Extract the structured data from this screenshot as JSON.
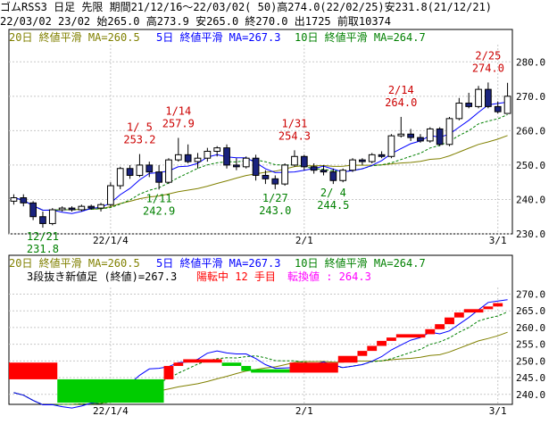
{
  "header": {
    "line1": "ゴムRSS3 日足 先限 期間21/12/16～22/03/02( 50)高274.0(22/02/25)安231.8(21/12/21)",
    "line2": "22/03/02 23/02 始265.0 高273.9 安265.0 終270.0 出1725 前取10374"
  },
  "colors": {
    "ma20": "#808000",
    "ma5": "#0000ff",
    "ma10": "#008000",
    "up": "#ff0000",
    "down": "#00cc00",
    "candle_body": "#ffffff",
    "candle_fill_dark": "#1a237e",
    "annotation_high": "#cc0000",
    "annotation_low": "#008000",
    "grid": "#c8c8c8"
  },
  "chart_data": [
    {
      "type": "candlestick",
      "legend": [
        {
          "label": "20日 終値平滑 MA=260.5",
          "color": "#808000"
        },
        {
          "label": "5日 終値平滑 MA=267.3",
          "color": "#0000ff"
        },
        {
          "label": "10日 終値平滑 MA=264.7",
          "color": "#008000"
        }
      ],
      "ylim": [
        230,
        285
      ],
      "yticks": [
        230,
        240,
        250,
        260,
        270,
        280
      ],
      "xticks": [
        {
          "label": "22/1/4",
          "index": 10
        },
        {
          "label": "2/1",
          "index": 30
        },
        {
          "label": "3/1",
          "index": 50
        }
      ],
      "candles": [
        [
          239.5,
          241.5,
          238.5,
          240.5
        ],
        [
          240.5,
          241.5,
          238.0,
          239.0
        ],
        [
          239.0,
          239.5,
          234.0,
          235.0
        ],
        [
          235.0,
          236.5,
          231.8,
          233.0
        ],
        [
          233.0,
          237.5,
          232.5,
          237.0
        ],
        [
          237.0,
          238.0,
          236.5,
          237.5
        ],
        [
          237.5,
          238.0,
          236.5,
          237.0
        ],
        [
          237.0,
          238.5,
          236.5,
          238.0
        ],
        [
          238.0,
          238.5,
          237.0,
          237.5
        ],
        [
          237.5,
          239.0,
          236.5,
          238.5
        ],
        [
          238.5,
          245.0,
          238.0,
          244.0
        ],
        [
          244.0,
          249.5,
          243.0,
          249.0
        ],
        [
          249.0,
          250.0,
          246.0,
          247.0
        ],
        [
          247.0,
          253.2,
          246.5,
          250.0
        ],
        [
          250.0,
          251.0,
          246.5,
          248.0
        ],
        [
          248.0,
          250.0,
          242.9,
          245.0
        ],
        [
          245.0,
          252.0,
          244.5,
          251.5
        ],
        [
          251.5,
          257.9,
          251.0,
          253.0
        ],
        [
          253.0,
          256.0,
          250.5,
          251.0
        ],
        [
          251.0,
          253.5,
          249.0,
          252.0
        ],
        [
          252.0,
          255.0,
          251.0,
          254.0
        ],
        [
          254.0,
          255.5,
          252.5,
          255.0
        ],
        [
          255.0,
          256.0,
          249.0,
          250.0
        ],
        [
          250.0,
          252.0,
          248.5,
          249.5
        ],
        [
          249.5,
          252.5,
          249.0,
          252.0
        ],
        [
          252.0,
          253.0,
          245.5,
          247.0
        ],
        [
          247.0,
          248.5,
          244.5,
          246.0
        ],
        [
          246.0,
          247.0,
          243.0,
          244.5
        ],
        [
          244.5,
          250.5,
          244.0,
          250.0
        ],
        [
          250.0,
          254.3,
          249.5,
          252.5
        ],
        [
          252.5,
          253.0,
          248.5,
          249.5
        ],
        [
          249.5,
          250.5,
          247.5,
          248.5
        ],
        [
          248.5,
          250.0,
          247.0,
          248.0
        ],
        [
          248.0,
          249.0,
          244.5,
          245.5
        ],
        [
          245.5,
          249.0,
          245.0,
          248.5
        ],
        [
          248.5,
          252.0,
          248.0,
          251.5
        ],
        [
          251.5,
          252.0,
          250.0,
          251.0
        ],
        [
          251.0,
          253.5,
          250.5,
          253.0
        ],
        [
          253.0,
          254.0,
          252.0,
          252.5
        ],
        [
          252.5,
          259.0,
          252.0,
          258.5
        ],
        [
          258.5,
          264.0,
          258.0,
          259.0
        ],
        [
          259.0,
          260.5,
          257.0,
          258.0
        ],
        [
          258.0,
          259.0,
          256.5,
          257.0
        ],
        [
          257.0,
          261.0,
          256.5,
          260.5
        ],
        [
          260.5,
          261.0,
          255.5,
          256.0
        ],
        [
          256.0,
          264.0,
          255.5,
          263.5
        ],
        [
          263.5,
          269.5,
          263.0,
          268.0
        ],
        [
          268.0,
          271.0,
          266.5,
          267.0
        ],
        [
          267.0,
          273.0,
          266.5,
          272.0
        ],
        [
          272.0,
          274.0,
          266.5,
          267.0
        ],
        [
          267.0,
          268.5,
          265.0,
          265.5
        ],
        [
          265.0,
          273.9,
          265.0,
          270.0
        ]
      ],
      "annotations": [
        {
          "text": "12/21",
          "value": 231.8,
          "index": 3,
          "kind": "low"
        },
        {
          "text": "231.8",
          "value": 231.8,
          "index": 3,
          "kind": "low"
        },
        {
          "text": "1/ 5",
          "value": 253.2,
          "index": 13,
          "kind": "high"
        },
        {
          "text": "253.2",
          "value": 253.2,
          "index": 13,
          "kind": "high"
        },
        {
          "text": "1/11",
          "value": 242.9,
          "index": 15,
          "kind": "low"
        },
        {
          "text": "242.9",
          "value": 242.9,
          "index": 15,
          "kind": "low"
        },
        {
          "text": "1/14",
          "value": 257.9,
          "index": 17,
          "kind": "high"
        },
        {
          "text": "257.9",
          "value": 257.9,
          "index": 17,
          "kind": "high"
        },
        {
          "text": "1/27",
          "value": 243.0,
          "index": 27,
          "kind": "low"
        },
        {
          "text": "243.0",
          "value": 243.0,
          "index": 27,
          "kind": "low"
        },
        {
          "text": "1/31",
          "value": 254.3,
          "index": 29,
          "kind": "high"
        },
        {
          "text": "254.3",
          "value": 254.3,
          "index": 29,
          "kind": "high"
        },
        {
          "text": "2/ 4",
          "value": 244.5,
          "index": 33,
          "kind": "low"
        },
        {
          "text": "244.5",
          "value": 244.5,
          "index": 33,
          "kind": "low"
        },
        {
          "text": "2/14",
          "value": 264.0,
          "index": 40,
          "kind": "high"
        },
        {
          "text": "264.0",
          "value": 264.0,
          "index": 40,
          "kind": "high"
        },
        {
          "text": "2/25",
          "value": 274.0,
          "index": 49,
          "kind": "high"
        },
        {
          "text": "274.0",
          "value": 274.0,
          "index": 49,
          "kind": "high"
        }
      ]
    },
    {
      "type": "three-line-break",
      "legend": [
        {
          "label": "20日 終値平滑 MA=260.5",
          "color": "#808000"
        },
        {
          "label": "5日 終値平滑 MA=267.3",
          "color": "#0000ff"
        },
        {
          "label": "10日 終値平滑 MA=264.7",
          "color": "#008000"
        }
      ],
      "info": [
        {
          "text": "3段抜き新値足 (終値)=267.3",
          "color": "#000000"
        },
        {
          "text": "陽転中  12 手目",
          "color": "#ff0000"
        },
        {
          "text": "転換値 : 264.3",
          "color": "#ff00ff"
        }
      ],
      "ylim": [
        237,
        272
      ],
      "yticks": [
        240,
        245,
        250,
        255,
        260,
        265,
        270
      ],
      "xticks": [
        {
          "label": "22/1/4",
          "index": 10
        },
        {
          "label": "2/1",
          "index": 30
        },
        {
          "label": "3/1",
          "index": 50
        }
      ],
      "bricks": [
        {
          "start": 0,
          "end": 5,
          "low": 244.5,
          "high": 249.5,
          "dir": "up"
        },
        {
          "start": 5,
          "end": 16,
          "low": 237.5,
          "high": 244.5,
          "dir": "down"
        },
        {
          "start": 16,
          "end": 17,
          "low": 244.5,
          "high": 248.5,
          "dir": "up"
        },
        {
          "start": 17,
          "end": 18,
          "low": 248.5,
          "high": 249.5,
          "dir": "up"
        },
        {
          "start": 18,
          "end": 22,
          "low": 249.5,
          "high": 250.5,
          "dir": "up"
        },
        {
          "start": 22,
          "end": 24,
          "low": 248.5,
          "high": 249.5,
          "dir": "down"
        },
        {
          "start": 24,
          "end": 25,
          "low": 247.0,
          "high": 248.5,
          "dir": "down"
        },
        {
          "start": 25,
          "end": 29,
          "low": 246.5,
          "high": 247.5,
          "dir": "down"
        },
        {
          "start": 29,
          "end": 34,
          "low": 246.5,
          "high": 249.5,
          "dir": "up"
        },
        {
          "start": 34,
          "end": 36,
          "low": 249.5,
          "high": 251.5,
          "dir": "up"
        },
        {
          "start": 36,
          "end": 37,
          "low": 251.5,
          "high": 253.0,
          "dir": "up"
        },
        {
          "start": 37,
          "end": 38,
          "low": 253.0,
          "high": 254.5,
          "dir": "up"
        },
        {
          "start": 38,
          "end": 39,
          "low": 254.5,
          "high": 256.0,
          "dir": "up"
        },
        {
          "start": 39,
          "end": 40,
          "low": 256.0,
          "high": 257.0,
          "dir": "up"
        },
        {
          "start": 40,
          "end": 43,
          "low": 257.0,
          "high": 258.0,
          "dir": "up"
        },
        {
          "start": 43,
          "end": 44,
          "low": 258.0,
          "high": 259.5,
          "dir": "up"
        },
        {
          "start": 44,
          "end": 45,
          "low": 259.5,
          "high": 261.0,
          "dir": "up"
        },
        {
          "start": 45,
          "end": 46,
          "low": 261.0,
          "high": 263.0,
          "dir": "up"
        },
        {
          "start": 46,
          "end": 47,
          "low": 263.0,
          "high": 264.5,
          "dir": "up"
        },
        {
          "start": 47,
          "end": 49,
          "low": 264.5,
          "high": 265.5,
          "dir": "up"
        },
        {
          "start": 49,
          "end": 50,
          "low": 265.5,
          "high": 266.3,
          "dir": "up"
        },
        {
          "start": 50,
          "end": 51,
          "low": 266.3,
          "high": 267.3,
          "dir": "up"
        }
      ]
    }
  ]
}
